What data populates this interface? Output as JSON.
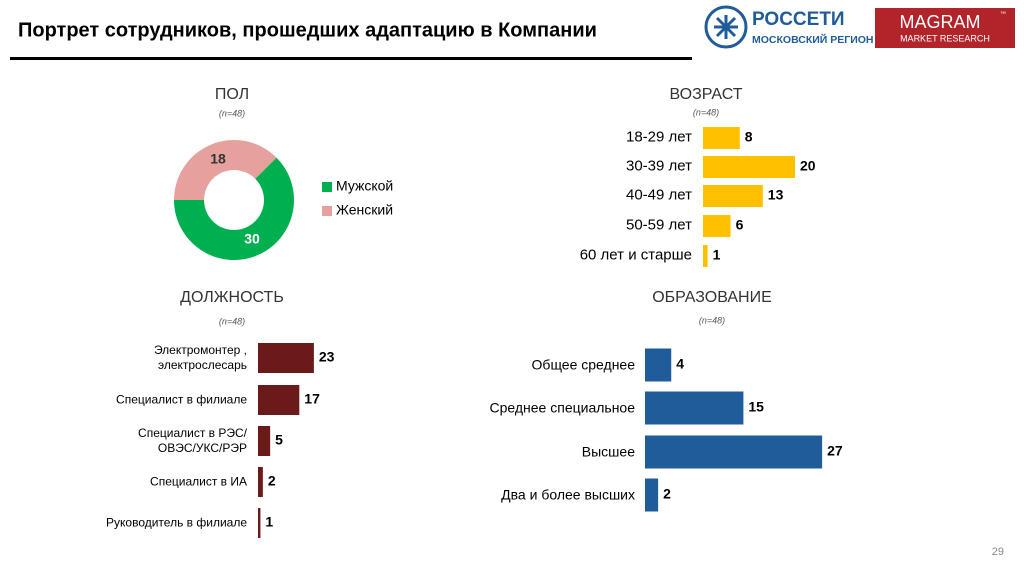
{
  "header": {
    "title": "Портрет сотрудников, прошедших адаптацию в Компании",
    "logo_main": "РОССЕТИ",
    "logo_sub": "МОСКОВСКИЙ РЕГИОН",
    "brand": "MAGRAM",
    "brand_tm": "™",
    "brand_sub": "MARKET RESEARCH"
  },
  "chart_data": [
    {
      "type": "donut",
      "title": "ПОЛ",
      "subtitle": "(n=48)",
      "categories": [
        "Мужской",
        "Женский"
      ],
      "values": [
        30,
        18
      ],
      "colors": [
        "#00b050",
        "#e6a09d"
      ],
      "legend": "right"
    },
    {
      "type": "bar",
      "title": "ВОЗРАСТ",
      "subtitle": "(n=48)",
      "categories": [
        "18-29 лет",
        "30-39 лет",
        "40-49 лет",
        "50-59 лет",
        "60 лет и старше"
      ],
      "values": [
        8,
        20,
        13,
        6,
        1
      ],
      "color": "#ffc000"
    },
    {
      "type": "bar",
      "title": "ДОЛЖНОСТЬ",
      "subtitle": "(n=48)",
      "categories": [
        "Электромонтер ,\nэлектрослесарь",
        "Специалист в филиале",
        "Специалист в РЭС/\nОВЭС/УКС/РЭР",
        "Специалист в ИА",
        "Руководитель в филиале"
      ],
      "values": [
        23,
        17,
        5,
        2,
        1
      ],
      "color": "#6b1a1a"
    },
    {
      "type": "bar",
      "title": "ОБРАЗОВАНИЕ",
      "subtitle": "(n=48)",
      "categories": [
        "Общее среднее",
        "Среднее специальное",
        "Высшее",
        "Два и более высших"
      ],
      "values": [
        4,
        15,
        27,
        2
      ],
      "color": "#1f5c99"
    }
  ],
  "page_number": "29"
}
